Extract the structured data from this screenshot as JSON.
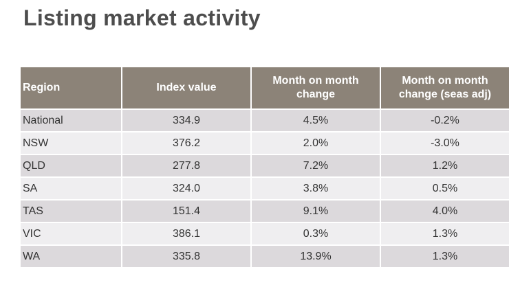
{
  "title": "Listing market activity",
  "table": {
    "headers": {
      "region": "Region",
      "index_value": "Index value",
      "mom_line1": "Month on month",
      "mom_line2": "change",
      "mom_sa_line1": "Month on month",
      "mom_sa_line2": "change (seas adj)"
    },
    "rows": [
      {
        "region": "National",
        "index": "334.9",
        "mom": "4.5%",
        "mom_sa": "-0.2%"
      },
      {
        "region": "NSW",
        "index": "376.2",
        "mom": "2.0%",
        "mom_sa": "-3.0%"
      },
      {
        "region": "QLD",
        "index": "277.8",
        "mom": "7.2%",
        "mom_sa": "1.2%"
      },
      {
        "region": "SA",
        "index": "324.0",
        "mom": "3.8%",
        "mom_sa": "0.5%"
      },
      {
        "region": "TAS",
        "index": "151.4",
        "mom": "9.1%",
        "mom_sa": "4.0%"
      },
      {
        "region": "VIC",
        "index": "386.1",
        "mom": "0.3%",
        "mom_sa": "1.3%"
      },
      {
        "region": "WA",
        "index": "335.8",
        "mom": "13.9%",
        "mom_sa": "1.3%"
      }
    ]
  },
  "colors": {
    "header_bg": "#8c8378",
    "row_dark": "#dcd9dc",
    "row_light": "#efeef0",
    "title_text": "#4d4d4d"
  }
}
